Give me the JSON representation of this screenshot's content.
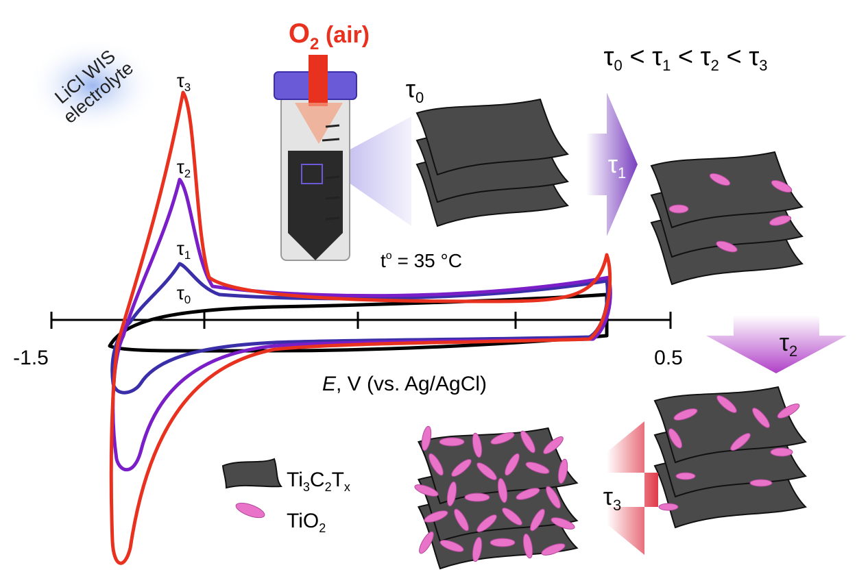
{
  "electrolyte_label": [
    "LiCl WIS",
    "electrolyte"
  ],
  "gas_label": {
    "main": "O",
    "sub": "2",
    "rest": " (air)"
  },
  "temperature": {
    "t": "t",
    "sup": "o",
    "rest": " = 35 °C"
  },
  "order": {
    "parts": [
      {
        "symbol": "τ",
        "sub": "0"
      },
      {
        "symbol": " < τ",
        "sub": "1"
      },
      {
        "symbol": " < τ",
        "sub": "2"
      },
      {
        "symbol": " < τ",
        "sub": "3"
      }
    ]
  },
  "cv_plot": {
    "x_axis_label": {
      "italic": "E",
      "rest": ", V (vs. Ag/AgCl)"
    },
    "x_tick_labels": [
      "-1.5",
      "0.5"
    ],
    "curve_labels": [
      {
        "symbol": "τ",
        "sub": "0"
      },
      {
        "symbol": "τ",
        "sub": "1"
      },
      {
        "symbol": "τ",
        "sub": "2"
      },
      {
        "symbol": "τ",
        "sub": "3"
      }
    ]
  },
  "stage_labels": [
    {
      "symbol": "τ",
      "sub": "0"
    },
    {
      "symbol": "τ",
      "sub": "1"
    },
    {
      "symbol": "τ",
      "sub": "2"
    },
    {
      "symbol": "τ",
      "sub": "3"
    }
  ],
  "legend": [
    {
      "parts": [
        "Ti",
        "3",
        "C",
        "2",
        "T",
        "x"
      ]
    },
    {
      "parts": [
        "TiO",
        "2"
      ]
    }
  ]
}
